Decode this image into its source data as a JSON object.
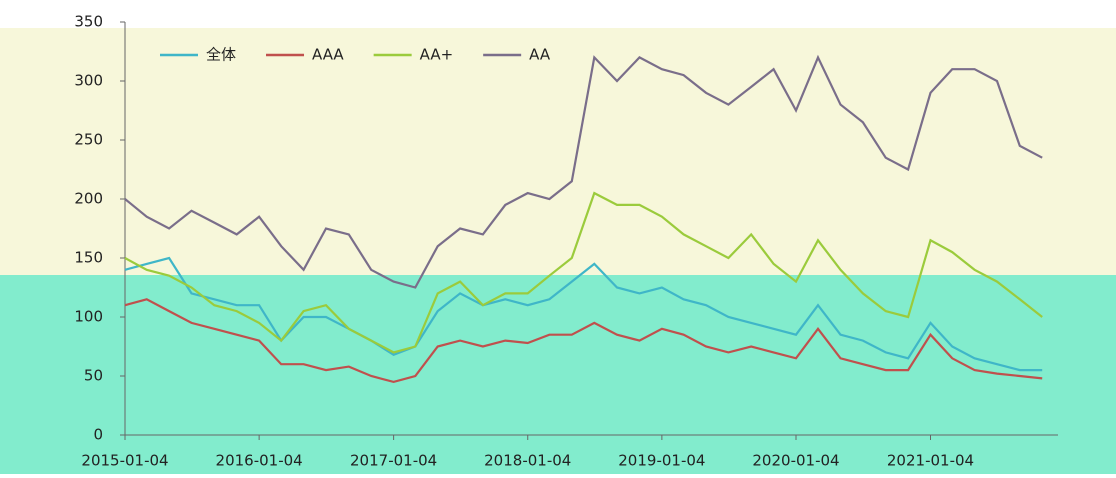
{
  "chart_data": {
    "type": "line",
    "x": [
      "2015-01-04",
      "2015-03-04",
      "2015-05-04",
      "2015-07-04",
      "2015-09-04",
      "2015-11-04",
      "2016-01-04",
      "2016-03-04",
      "2016-05-04",
      "2016-07-04",
      "2016-09-04",
      "2016-11-04",
      "2017-01-04",
      "2017-03-04",
      "2017-05-04",
      "2017-07-04",
      "2017-09-04",
      "2017-11-04",
      "2018-01-04",
      "2018-03-04",
      "2018-05-04",
      "2018-07-04",
      "2018-09-04",
      "2018-11-04",
      "2019-01-04",
      "2019-03-04",
      "2019-05-04",
      "2019-07-04",
      "2019-09-04",
      "2019-11-04",
      "2020-01-04",
      "2020-03-04",
      "2020-05-04",
      "2020-07-04",
      "2020-09-04",
      "2020-11-04",
      "2021-01-04",
      "2021-03-04",
      "2021-05-04",
      "2021-07-04",
      "2021-09-04",
      "2021-11-04"
    ],
    "series": [
      {
        "name": "全体",
        "color": "#3fb6c8",
        "values": [
          140,
          145,
          150,
          120,
          115,
          110,
          110,
          80,
          100,
          100,
          90,
          80,
          68,
          75,
          105,
          120,
          110,
          115,
          110,
          115,
          130,
          145,
          125,
          120,
          125,
          115,
          110,
          100,
          95,
          90,
          85,
          110,
          85,
          80,
          70,
          65,
          95,
          75,
          65,
          60,
          55,
          55
        ]
      },
      {
        "name": "AAA",
        "color": "#c0504d",
        "values": [
          110,
          115,
          105,
          95,
          90,
          85,
          80,
          60,
          60,
          55,
          58,
          50,
          45,
          50,
          75,
          80,
          75,
          80,
          78,
          85,
          85,
          95,
          85,
          80,
          90,
          85,
          75,
          70,
          75,
          70,
          65,
          90,
          65,
          60,
          55,
          55,
          85,
          65,
          55,
          52,
          50,
          48
        ]
      },
      {
        "name": "AA+",
        "color": "#9bcb3c",
        "values": [
          150,
          140,
          135,
          125,
          110,
          105,
          95,
          80,
          105,
          110,
          90,
          80,
          70,
          75,
          120,
          130,
          110,
          120,
          120,
          135,
          150,
          205,
          195,
          195,
          185,
          170,
          160,
          150,
          170,
          145,
          130,
          165,
          140,
          120,
          105,
          100,
          165,
          155,
          140,
          130,
          115,
          100
        ]
      },
      {
        "name": "AA",
        "color": "#7a6e8a",
        "values": [
          200,
          185,
          175,
          190,
          180,
          170,
          185,
          160,
          140,
          175,
          170,
          140,
          130,
          125,
          160,
          175,
          170,
          195,
          205,
          200,
          215,
          320,
          300,
          320,
          310,
          305,
          290,
          280,
          295,
          310,
          275,
          320,
          280,
          265,
          235,
          225,
          290,
          310,
          310,
          300,
          245,
          235
        ]
      }
    ],
    "xlim": [
      "2015-01-04",
      "2021-12-17"
    ],
    "xticks": [
      "2015-01-04",
      "2016-01-04",
      "2017-01-04",
      "2018-01-04",
      "2019-01-04",
      "2020-01-04",
      "2021-01-04"
    ],
    "ylim": [
      0,
      350
    ],
    "yticks": [
      0,
      50,
      100,
      150,
      200,
      250,
      300,
      350
    ],
    "legend": "top-left"
  }
}
